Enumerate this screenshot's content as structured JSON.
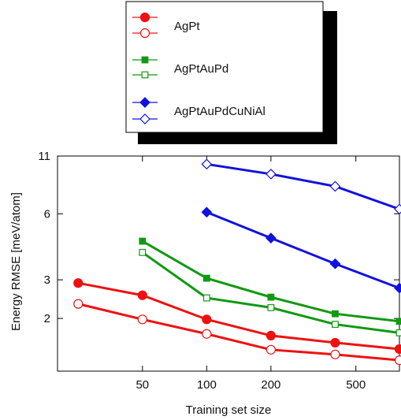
{
  "chart_data": {
    "type": "line",
    "title": "",
    "xlabel": "Training set size",
    "ylabel": "Energy RMSE [meV/atom]",
    "x_scale": "log",
    "y_scale": "log",
    "xlim": [
      20,
      800
    ],
    "ylim": [
      1.15,
      11
    ],
    "x_ticks": [
      50,
      100,
      200,
      500
    ],
    "y_ticks": [
      2,
      3,
      6,
      11
    ],
    "grid": false,
    "legend_position": "top-center",
    "series": [
      {
        "name": "AgPt",
        "color": "#ee1111",
        "marker": "circle",
        "filled": true,
        "x": [
          25,
          50,
          100,
          200,
          400,
          800
        ],
        "y": [
          2.9,
          2.55,
          1.98,
          1.67,
          1.55,
          1.45
        ]
      },
      {
        "name": "",
        "color": "#ee1111",
        "marker": "circle",
        "filled": false,
        "x": [
          25,
          50,
          100,
          200,
          400,
          800
        ],
        "y": [
          2.33,
          1.98,
          1.7,
          1.44,
          1.37,
          1.29
        ]
      },
      {
        "name": "AgPtAuPd",
        "color": "#119911",
        "marker": "square",
        "filled": true,
        "x": [
          50,
          100,
          200,
          400,
          800
        ],
        "y": [
          4.5,
          3.05,
          2.5,
          2.1,
          1.94
        ]
      },
      {
        "name": "",
        "color": "#119911",
        "marker": "square",
        "filled": false,
        "x": [
          50,
          100,
          200,
          400,
          800
        ],
        "y": [
          4.0,
          2.48,
          2.24,
          1.88,
          1.72
        ]
      },
      {
        "name": "AgPtAuPdCuNiAl",
        "color": "#1111dd",
        "marker": "diamond",
        "filled": true,
        "x": [
          100,
          200,
          400,
          800
        ],
        "y": [
          6.1,
          4.65,
          3.55,
          2.75
        ]
      },
      {
        "name": "",
        "color": "#1111dd",
        "marker": "diamond",
        "filled": false,
        "x": [
          100,
          200,
          400,
          800
        ],
        "y": [
          10.1,
          9.1,
          8.0,
          6.3
        ]
      }
    ]
  }
}
